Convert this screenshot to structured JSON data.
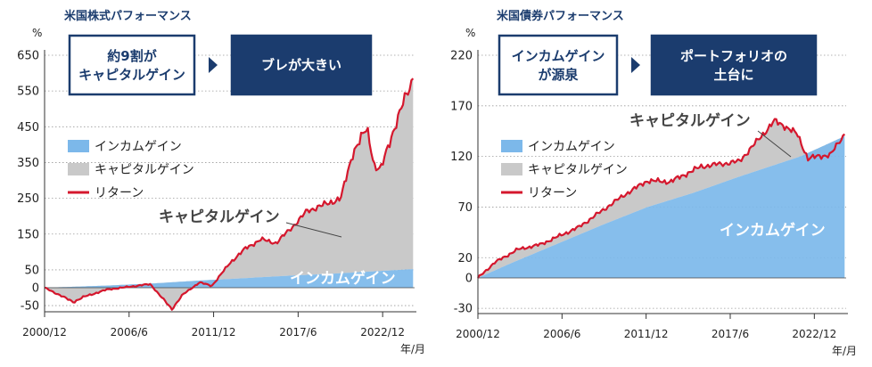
{
  "colors": {
    "income": "#7cb8ea",
    "capital": "#c9c9c9",
    "return": "#d5172d",
    "navy": "#1b3c6e",
    "grid": "#9a9a9a"
  },
  "chart_data": [
    {
      "type": "area",
      "title": "米国株式パフォーマンス",
      "unit": "%",
      "xlabel_unit": "年/月",
      "ylim": [
        -50,
        650
      ],
      "yticks": [
        -50,
        0,
        50,
        150,
        250,
        350,
        450,
        550,
        650
      ],
      "x_range": [
        2000.92,
        2025.0
      ],
      "xticks": [
        {
          "x": 2000.92,
          "label": "2000/12"
        },
        {
          "x": 2006.42,
          "label": "2006/6"
        },
        {
          "x": 2011.92,
          "label": "2011/12"
        },
        {
          "x": 2017.42,
          "label": "2017/6"
        },
        {
          "x": 2022.92,
          "label": "2022/12"
        }
      ],
      "legend": [
        "インカムゲイン",
        "キャピタルゲイン",
        "リターン"
      ],
      "callouts": [
        "約9割が\nキャピタルゲイン",
        "ブレが大きい"
      ],
      "annotations": {
        "capital": "キャピタルゲイン",
        "income": "インカムゲイン"
      },
      "series": [
        {
          "name": "インカムゲイン",
          "x": [
            2000.92,
            2003,
            2005,
            2008,
            2011,
            2014,
            2017,
            2020,
            2022,
            2024.9
          ],
          "values": [
            0,
            3,
            6,
            12,
            20,
            27,
            34,
            40,
            45,
            52
          ]
        },
        {
          "name": "リターン",
          "x": [
            2000.92,
            2001.5,
            2002.8,
            2003.5,
            2005,
            2007.8,
            2009.2,
            2009.9,
            2011.0,
            2011.8,
            2013,
            2014,
            2015,
            2016,
            2017.5,
            2018,
            2019,
            2020.2,
            2021.0,
            2021.9,
            2022.4,
            2022.8,
            2023.5,
            2024.3,
            2024.9
          ],
          "values": [
            0,
            -12,
            -40,
            -25,
            -5,
            10,
            -60,
            -20,
            15,
            5,
            70,
            110,
            135,
            125,
            190,
            215,
            230,
            250,
            380,
            445,
            340,
            330,
            425,
            520,
            585
          ]
        }
      ]
    },
    {
      "type": "area",
      "title": "米国債券パフォーマンス",
      "unit": "%",
      "xlabel_unit": "年/月",
      "ylim": [
        -30,
        220
      ],
      "yticks": [
        -30,
        0,
        20,
        70,
        120,
        170,
        220
      ],
      "x_range": [
        2000.92,
        2025.0
      ],
      "xticks": [
        {
          "x": 2000.92,
          "label": "2000/12"
        },
        {
          "x": 2006.42,
          "label": "2006/6"
        },
        {
          "x": 2011.92,
          "label": "2011/12"
        },
        {
          "x": 2017.42,
          "label": "2017/6"
        },
        {
          "x": 2022.92,
          "label": "2022/12"
        }
      ],
      "legend": [
        "インカムゲイン",
        "キャピタルゲイン",
        "リターン"
      ],
      "callouts": [
        "インカムゲイン\nが源泉",
        "ポートフォリオの\n土台に"
      ],
      "annotations": {
        "capital": "キャピタルゲイン",
        "income": "インカムゲイン"
      },
      "series": [
        {
          "name": "インカムゲイン",
          "x": [
            2000.92,
            2003,
            2006,
            2009,
            2012,
            2015,
            2018,
            2020,
            2022,
            2024.9
          ],
          "values": [
            0,
            14,
            33,
            52,
            70,
            84,
            100,
            110,
            120,
            140
          ]
        },
        {
          "name": "リターン",
          "x": [
            2000.92,
            2002,
            2003.5,
            2005,
            2007.5,
            2009,
            2010.5,
            2012,
            2013.5,
            2015.5,
            2016.5,
            2018,
            2019,
            2020.3,
            2021.0,
            2021.8,
            2022.5,
            2023.2,
            2024.0,
            2024.9
          ],
          "values": [
            0,
            15,
            28,
            33,
            50,
            66,
            82,
            96,
            95,
            110,
            112,
            115,
            132,
            155,
            150,
            142,
            118,
            120,
            122,
            142
          ]
        }
      ]
    }
  ]
}
